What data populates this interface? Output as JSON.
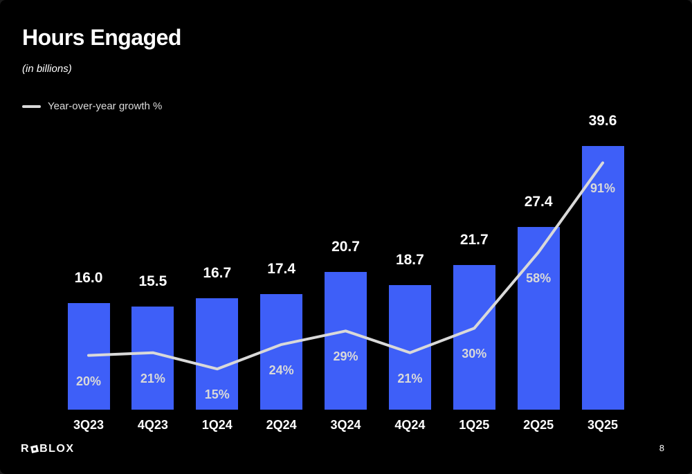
{
  "slide": {
    "title": "Hours Engaged",
    "subtitle": "(in billions)",
    "page_number": "8",
    "logo": {
      "prefix": "R",
      "suffix": "BLOX"
    }
  },
  "legend": {
    "growth_label": "Year-over-year growth %"
  },
  "colors": {
    "background": "#000000",
    "bar": "#3e5ff8",
    "line": "#d9d9d9",
    "value_text": "#ffffff",
    "percent_text": "#d9d9d9"
  },
  "chart_data": {
    "type": "bar",
    "title": "Hours Engaged (in billions)",
    "categories": [
      "3Q23",
      "4Q23",
      "1Q24",
      "2Q24",
      "3Q24",
      "4Q24",
      "1Q25",
      "2Q25",
      "3Q25"
    ],
    "series": [
      {
        "name": "Hours engaged (in billions)",
        "type": "bar",
        "values": [
          16.0,
          15.5,
          16.7,
          17.4,
          20.7,
          18.7,
          21.7,
          27.4,
          39.6
        ],
        "labels": [
          "16.0",
          "15.5",
          "16.7",
          "17.4",
          "20.7",
          "18.7",
          "21.7",
          "27.4",
          "39.6"
        ]
      },
      {
        "name": "Year-over-year growth %",
        "type": "line",
        "values": [
          20,
          21,
          15,
          24,
          29,
          21,
          30,
          58,
          91
        ],
        "labels": [
          "20%",
          "21%",
          "15%",
          "24%",
          "29%",
          "21%",
          "30%",
          "58%",
          "91%"
        ]
      }
    ],
    "legend_position": "top-left",
    "grid": false,
    "value_labels_shown": true,
    "bar_axis_range": [
      0,
      41
    ],
    "line_axis_range": [
      0,
      150
    ]
  }
}
